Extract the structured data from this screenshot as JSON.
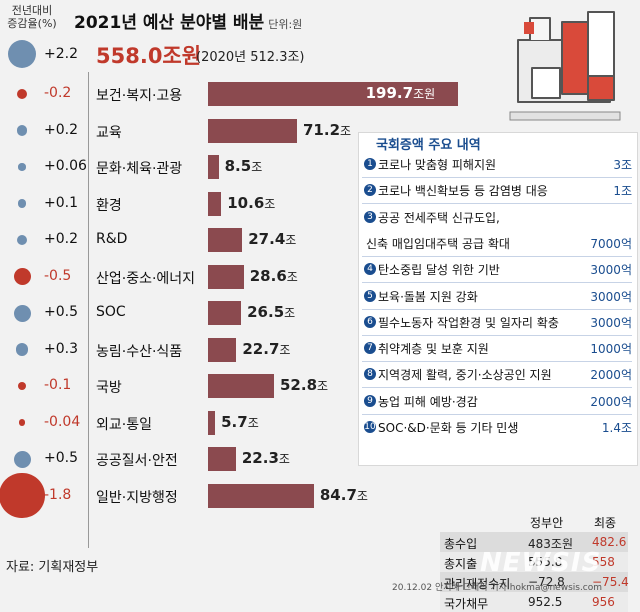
{
  "header": {
    "change_label": "전년대비 증감율(%)",
    "title": "2021년 예산 분야별 배분",
    "unit": "단위:원",
    "total_change": "+2.2",
    "total_value": "558.0조원",
    "total_prev": "(2020년 512.3조)"
  },
  "chart_data": {
    "type": "bar",
    "title": "2021년 예산 분야별 배분",
    "unit": "조원",
    "categories": [
      "보건·복지·고용",
      "교육",
      "문화·체육·관광",
      "환경",
      "R&D",
      "산업·중소·에너지",
      "SOC",
      "농림·수산·식품",
      "국방",
      "외교·통일",
      "공공질서·안전",
      "일반·지방행정"
    ],
    "values": [
      199.7,
      71.2,
      8.5,
      10.6,
      27.4,
      28.6,
      26.5,
      22.7,
      52.8,
      5.7,
      22.3,
      84.7
    ],
    "value_labels": [
      "199.7",
      "71.2",
      "8.5",
      "10.6",
      "27.4",
      "28.6",
      "26.5",
      "22.7",
      "52.8",
      "5.7",
      "22.3",
      "84.7"
    ],
    "value_suffixes": [
      "조원",
      "조",
      "조",
      "조",
      "조",
      "조",
      "조",
      "조",
      "조",
      "조",
      "조",
      "조"
    ],
    "change_pct_labels": [
      "-0.2",
      "+0.2",
      "+0.06",
      "+0.1",
      "+0.2",
      "-0.5",
      "+0.5",
      "+0.3",
      "-0.1",
      "-0.04",
      "+0.5",
      "-1.8"
    ],
    "change_pct": [
      -0.2,
      0.2,
      0.06,
      0.1,
      0.2,
      -0.5,
      0.5,
      0.3,
      -0.1,
      -0.04,
      0.5,
      -1.8
    ],
    "bar_color": "#8b4a4f",
    "positive_dot_color": "#6f8fb0",
    "negative_dot_color": "#c0392b"
  },
  "notes": {
    "title": "국회증액 주요 내역",
    "items": [
      {
        "num": "1",
        "text": "코로나 맞춤형 피해지원",
        "amount": "3조"
      },
      {
        "num": "2",
        "text": "코로나 백신확보등 등 감염병 대응",
        "amount": "1조"
      },
      {
        "num": "3",
        "text": "공공 전세주택 신규도입,",
        "amount": ""
      },
      {
        "num": "",
        "text": "신축 매입임대주택 공급 확대",
        "amount": "7000억"
      },
      {
        "num": "4",
        "text": "탄소중립 달성 위한 기반",
        "amount": "3000억"
      },
      {
        "num": "5",
        "text": "보육·돌봄 지원 강화",
        "amount": "3000억"
      },
      {
        "num": "6",
        "text": "필수노동자 작업환경 및 일자리 확충",
        "amount": "3000억"
      },
      {
        "num": "7",
        "text": "취약계층 및 보훈 지원",
        "amount": "1000억"
      },
      {
        "num": "8",
        "text": "지역경제 활력, 중기·소상공인 지원",
        "amount": "2000억"
      },
      {
        "num": "9",
        "text": "농업 피해 예방·경감",
        "amount": "2000억"
      },
      {
        "num": "10",
        "text": "SOC·&D·문화 등 기타 민생",
        "amount": "1.4조"
      }
    ]
  },
  "summary": {
    "col1": "정부안",
    "col2": "최종",
    "rows": [
      {
        "label": "총수입",
        "v1": "483조원",
        "v2": "482.6"
      },
      {
        "label": "총지출",
        "v1": "555.8",
        "v2": "558"
      },
      {
        "label": "관리재정수지",
        "v1": "−72.8",
        "v2": "−75.4"
      },
      {
        "label": "국가채무",
        "v1": "952.5",
        "v2": "956"
      }
    ]
  },
  "footer": {
    "source": "자료: 기획재정부",
    "credit": "20.12.02 안지혜 그래픽 기자 hokma@newsis.com",
    "watermark": "NEWSIS"
  }
}
